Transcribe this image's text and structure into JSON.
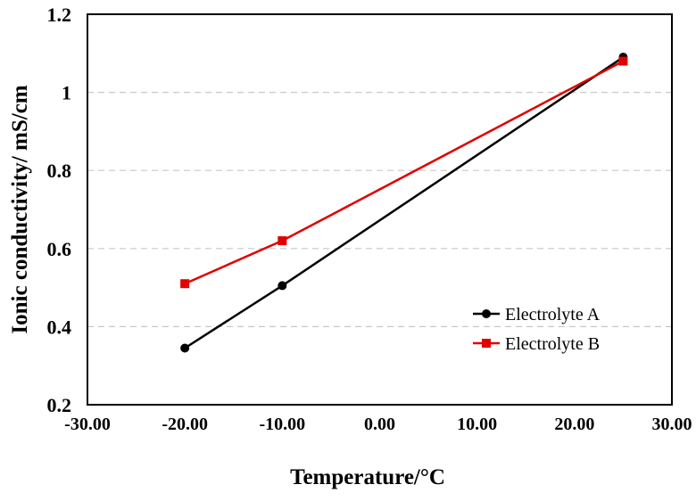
{
  "chart_data": {
    "type": "line",
    "title": "",
    "xlabel": "Temperature/°C",
    "ylabel": "Ionic conductivity/ mS/cm",
    "xlim": [
      -30,
      30
    ],
    "ylim": [
      0.2,
      1.2
    ],
    "xticks": [
      -30,
      -20,
      -10,
      0,
      10,
      20,
      30
    ],
    "xtick_labels": [
      "-30.00",
      "-20.00",
      "-10.00",
      "0.00",
      "10.00",
      "20.00",
      "30.00"
    ],
    "yticks": [
      0.2,
      0.4,
      0.6,
      0.8,
      1,
      1.2
    ],
    "ytick_labels": [
      "0.2",
      "0.4",
      "0.6",
      "0.8",
      "1",
      "1.2"
    ],
    "grid": "horizontal dashed",
    "legend_position": "lower-right",
    "series": [
      {
        "name": "Electrolyte A",
        "color": "#000000",
        "marker": "circle",
        "x": [
          -20,
          -10,
          25
        ],
        "y": [
          0.345,
          0.505,
          1.09
        ]
      },
      {
        "name": "Electrolyte B",
        "color": "#e00000",
        "marker": "square",
        "x": [
          -20,
          -10,
          25
        ],
        "y": [
          0.51,
          0.62,
          1.08
        ]
      }
    ]
  }
}
